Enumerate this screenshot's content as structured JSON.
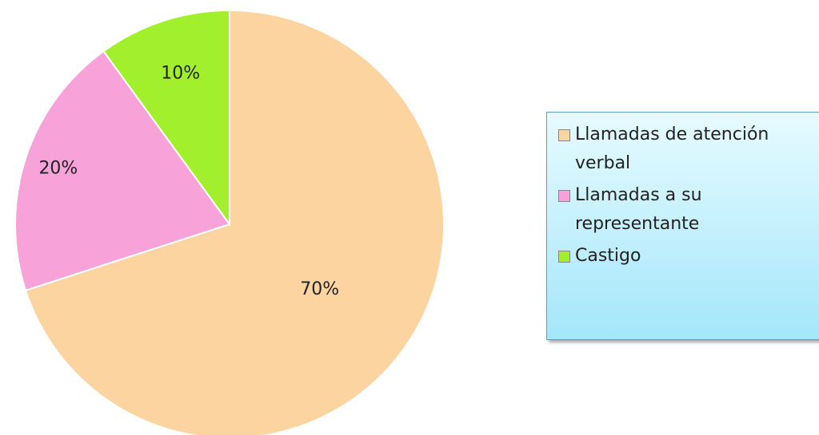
{
  "chart_data": {
    "type": "pie",
    "categories": [
      "Llamadas de atención verbal",
      "Llamadas a su representante",
      "Castigo"
    ],
    "values": [
      70,
      20,
      10
    ],
    "value_labels": [
      "70%",
      "20%",
      "10%"
    ],
    "colors": [
      "#fcd49f",
      "#f7a3d9",
      "#a2ef2e"
    ],
    "legend": "right"
  }
}
